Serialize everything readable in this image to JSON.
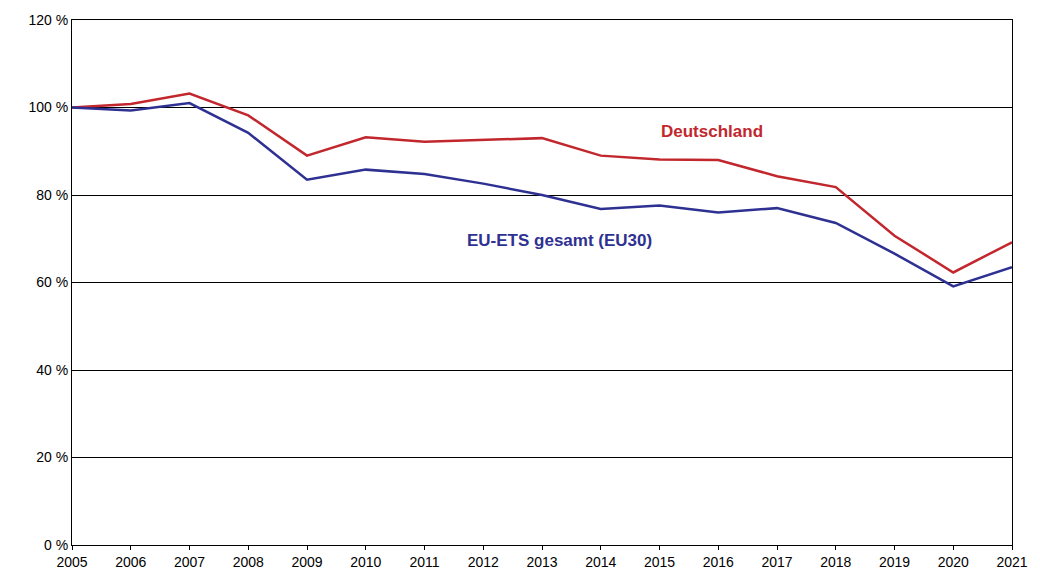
{
  "chart_data": {
    "type": "line",
    "x": [
      2005,
      2006,
      2007,
      2008,
      2009,
      2010,
      2011,
      2012,
      2013,
      2014,
      2015,
      2016,
      2017,
      2018,
      2019,
      2020,
      2021
    ],
    "series": [
      {
        "name": "Deutschland",
        "color": "#c1272d",
        "values": [
          100,
          100.8,
          103.2,
          98.2,
          89,
          93.2,
          92.2,
          92.6,
          93,
          89,
          88.1,
          88,
          84.3,
          81.8,
          70.7,
          62.3,
          69.2
        ]
      },
      {
        "name": "EU-ETS gesamt (EU30)",
        "color": "#2e3192",
        "values": [
          100,
          99.3,
          101,
          94.2,
          83.5,
          85.8,
          84.8,
          82.6,
          80,
          76.8,
          77.6,
          76,
          77,
          73.6,
          66.6,
          59.1,
          63.5
        ]
      }
    ],
    "xlim": [
      2005,
      2021
    ],
    "xticks": [
      2005,
      2006,
      2007,
      2008,
      2009,
      2010,
      2011,
      2012,
      2013,
      2014,
      2015,
      2016,
      2017,
      2018,
      2019,
      2020,
      2021
    ],
    "ylim": [
      0,
      120
    ],
    "yticks": [
      {
        "value": 0,
        "label": "0 %"
      },
      {
        "value": 20,
        "label": "20 %"
      },
      {
        "value": 40,
        "label": "40 %"
      },
      {
        "value": 60,
        "label": "60 %"
      },
      {
        "value": 80,
        "label": "80 %"
      },
      {
        "value": 100,
        "label": "100 %"
      },
      {
        "value": 120,
        "label": "120 %"
      }
    ],
    "grid": "y"
  }
}
